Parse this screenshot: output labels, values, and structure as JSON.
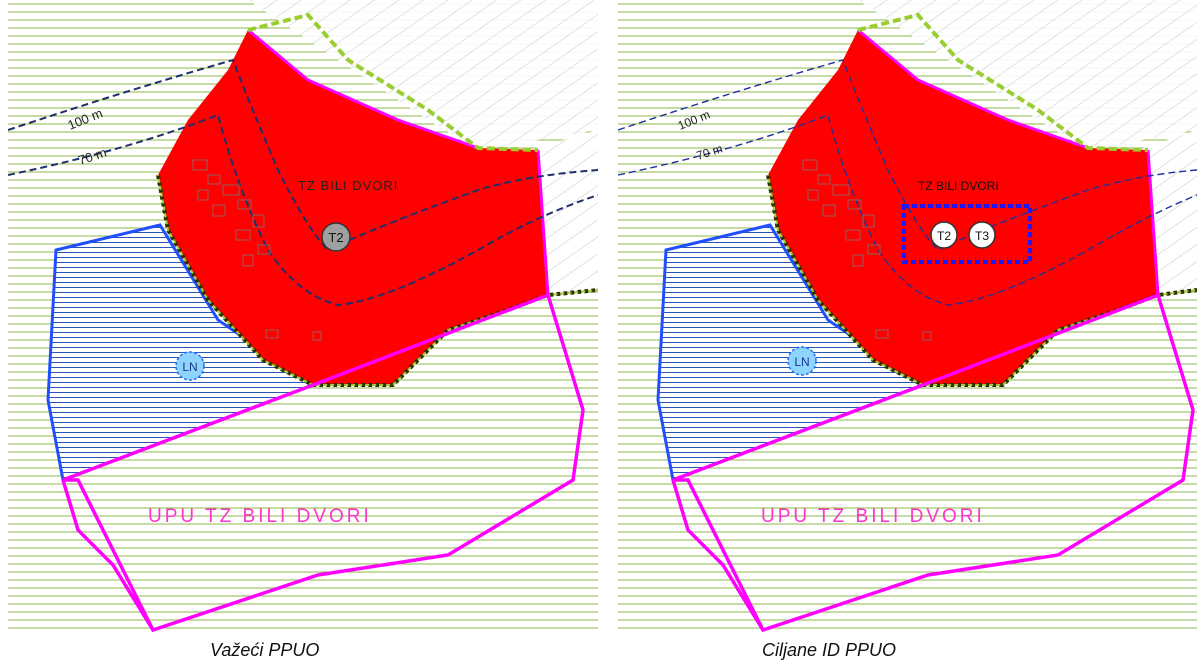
{
  "colors": {
    "zone_red": "#ff0000",
    "upu_boundary": "#ff00ff",
    "ln_boundary": "#1f4fff",
    "ln_hatch": "#2a55b8",
    "field_lines": "#8fb84a",
    "dashed_green": "#9acd32",
    "contour": "#1f2f6b",
    "marker_blue": "#1a1aff"
  },
  "panels": [
    {
      "caption": "Važeći PPUO",
      "zone_label": "TZ BILI DVORI",
      "upu_label": "UPU TZ BILI DVORI",
      "contour_labels": [
        "100 m",
        "70 m"
      ],
      "markers": [
        "T2",
        "LN"
      ]
    },
    {
      "caption": "Ciljane ID PPUO",
      "zone_label": "TZ BILI DVORI",
      "upu_label": "UPU TZ BILI DVORI",
      "contour_labels": [
        "100 m",
        "70 m"
      ],
      "markers": [
        "T2",
        "T3",
        "LN"
      ]
    }
  ]
}
